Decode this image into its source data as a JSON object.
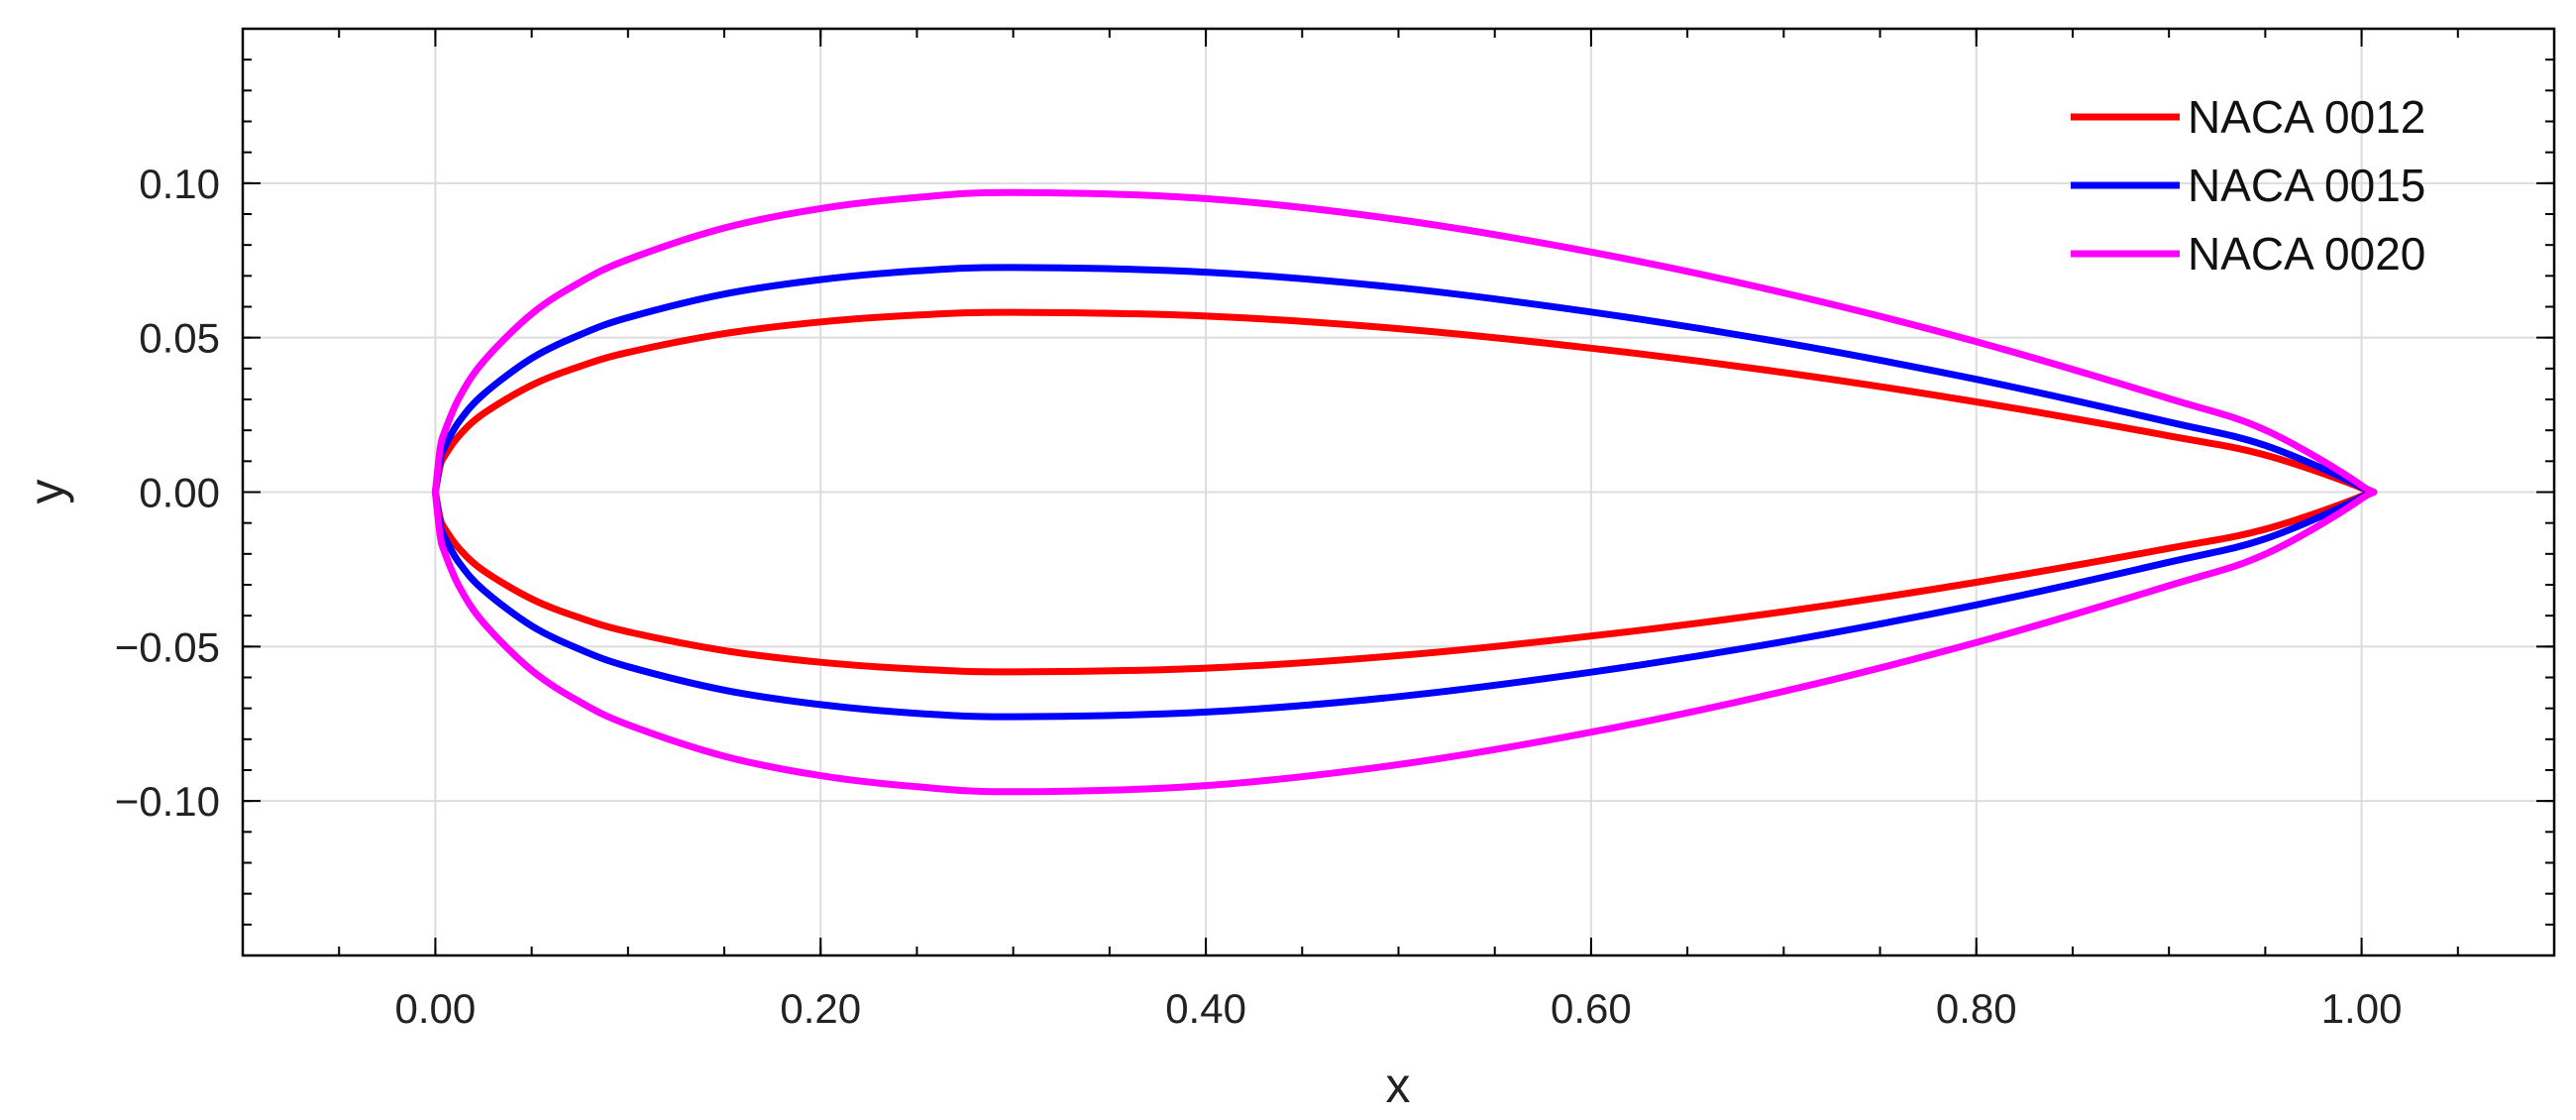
{
  "chart_data": {
    "type": "line",
    "title": "",
    "xlabel": "x",
    "ylabel": "y",
    "xlim": [
      -0.1,
      1.1
    ],
    "ylim": [
      -0.15,
      0.15
    ],
    "x_ticks": [
      0.0,
      0.2,
      0.4,
      0.6,
      0.8,
      1.0
    ],
    "x_tick_labels": [
      "0.00",
      "0.20",
      "0.40",
      "0.60",
      "0.80",
      "1.00"
    ],
    "y_ticks": [
      0.1,
      0.05,
      0.0,
      -0.05,
      -0.1
    ],
    "y_tick_labels": [
      "0.10",
      "0.05",
      "0.00",
      "−0.05",
      "−0.10"
    ],
    "x_minor_step": 0.05,
    "y_minor_step": 0.01,
    "grid": true,
    "legend_position": "top-right",
    "series": [
      {
        "name": "NACA 0012",
        "color": "#ff0000",
        "thickness": 0.12,
        "x": [
          0.0,
          0.0025,
          0.005,
          0.0125,
          0.025,
          0.05,
          0.075,
          0.1,
          0.15,
          0.2,
          0.25,
          0.3,
          0.4,
          0.5,
          0.6,
          0.7,
          0.8,
          0.9,
          0.95,
          1.0
        ],
        "upper": [
          0.0,
          0.0085,
          0.0119,
          0.0184,
          0.0254,
          0.0346,
          0.0407,
          0.0452,
          0.0513,
          0.0551,
          0.0573,
          0.0582,
          0.057,
          0.0529,
          0.0466,
          0.0387,
          0.0292,
          0.0182,
          0.012,
          0.0013
        ],
        "lower": [
          0.0,
          -0.0085,
          -0.0119,
          -0.0184,
          -0.0254,
          -0.0346,
          -0.0407,
          -0.0452,
          -0.0513,
          -0.0551,
          -0.0573,
          -0.0582,
          -0.057,
          -0.0529,
          -0.0466,
          -0.0387,
          -0.0292,
          -0.0182,
          -0.012,
          -0.0013
        ]
      },
      {
        "name": "NACA 0015",
        "color": "#0000ff",
        "thickness": 0.15,
        "x": [
          0.0,
          0.0025,
          0.005,
          0.0125,
          0.025,
          0.05,
          0.075,
          0.1,
          0.15,
          0.2,
          0.25,
          0.3,
          0.4,
          0.5,
          0.6,
          0.7,
          0.8,
          0.9,
          0.95,
          1.0
        ],
        "upper": [
          0.0,
          0.0106,
          0.0149,
          0.023,
          0.0317,
          0.0433,
          0.0509,
          0.0565,
          0.0641,
          0.0688,
          0.0716,
          0.0727,
          0.0712,
          0.0662,
          0.0583,
          0.0484,
          0.0365,
          0.0227,
          0.0151,
          0.0016
        ],
        "lower": [
          0.0,
          -0.0106,
          -0.0149,
          -0.023,
          -0.0317,
          -0.0433,
          -0.0509,
          -0.0565,
          -0.0641,
          -0.0688,
          -0.0716,
          -0.0727,
          -0.0712,
          -0.0662,
          -0.0583,
          -0.0484,
          -0.0365,
          -0.0227,
          -0.0151,
          -0.0016
        ]
      },
      {
        "name": "NACA 0020",
        "color": "#ff00ff",
        "thickness": 0.2,
        "x": [
          0.0,
          0.0025,
          0.005,
          0.0125,
          0.025,
          0.05,
          0.075,
          0.1,
          0.15,
          0.2,
          0.25,
          0.3,
          0.4,
          0.5,
          0.6,
          0.7,
          0.8,
          0.9,
          0.95,
          1.0
        ],
        "upper": [
          0.0,
          0.0142,
          0.0198,
          0.0307,
          0.0423,
          0.0577,
          0.0679,
          0.0753,
          0.0855,
          0.0918,
          0.0954,
          0.097,
          0.095,
          0.0882,
          0.0777,
          0.0645,
          0.0487,
          0.0303,
          0.0201,
          0.0021
        ],
        "lower": [
          0.0,
          -0.0142,
          -0.0198,
          -0.0307,
          -0.0423,
          -0.0577,
          -0.0679,
          -0.0753,
          -0.0855,
          -0.0918,
          -0.0954,
          -0.097,
          -0.095,
          -0.0882,
          -0.0777,
          -0.0645,
          -0.0487,
          -0.0303,
          -0.0201,
          -0.0021
        ]
      }
    ]
  }
}
